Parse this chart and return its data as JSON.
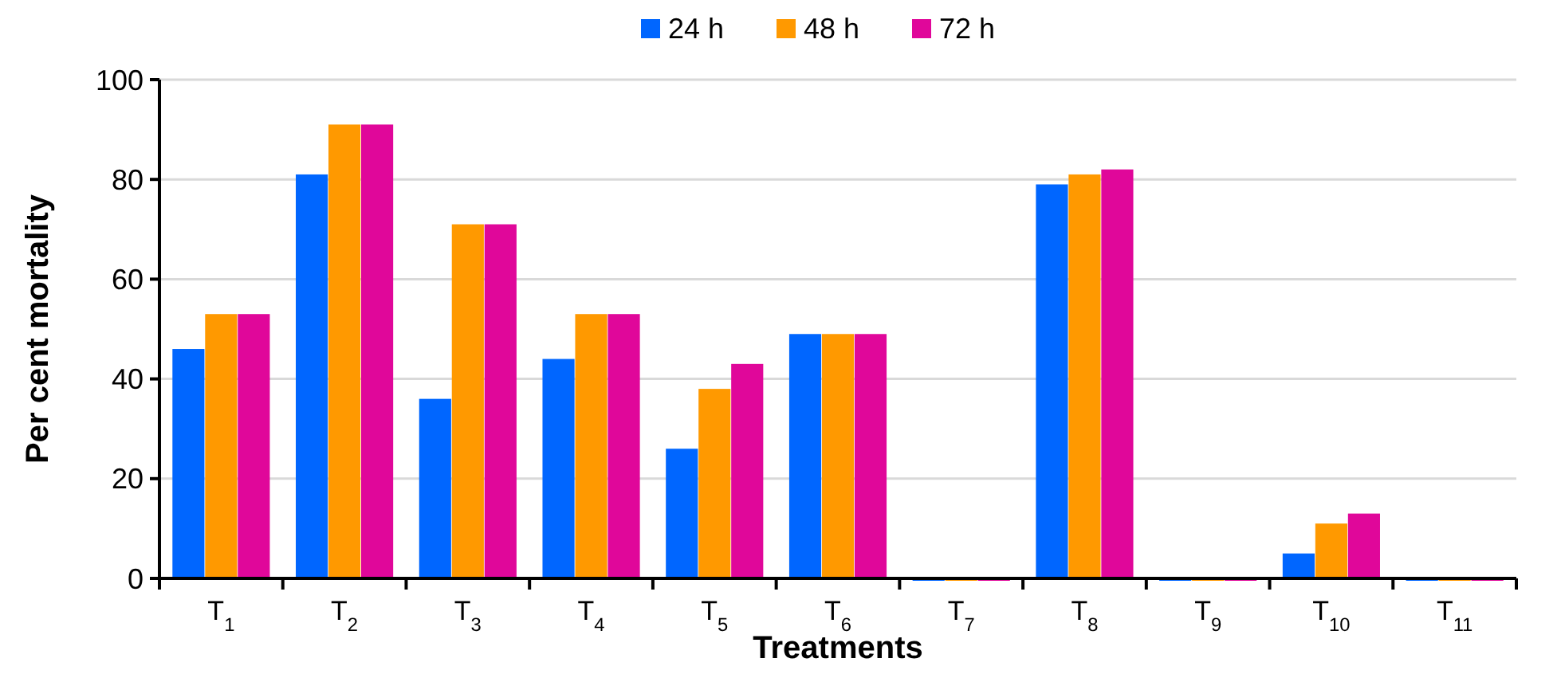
{
  "chart_data": {
    "type": "bar",
    "xlabel": "Treatments",
    "ylabel": "Per cent mortality",
    "categories": [
      "T$_{1}$",
      "T$_{2}$",
      "T$_{3}$",
      "T$_{4}$",
      "T$_{5}$",
      "T$_{6}$",
      "T$_{7}$",
      "T$_{8}$",
      "T$_{9}$",
      "T$_{10}$",
      "T$_{11}$"
    ],
    "series": [
      {
        "name": "24 h",
        "color": "#0066ff",
        "values": [
          46,
          81,
          36,
          44,
          26,
          49,
          0,
          79,
          0,
          5,
          0
        ]
      },
      {
        "name": "48 h",
        "color": "#ff9900",
        "values": [
          53,
          91,
          71,
          53,
          38,
          49,
          0,
          81,
          0,
          11,
          0
        ]
      },
      {
        "name": "72 h",
        "color": "#e0079a",
        "values": [
          53,
          91,
          71,
          53,
          43,
          49,
          0,
          82,
          0,
          13,
          0
        ]
      }
    ],
    "ylim": [
      0,
      100
    ],
    "yticks": [
      0,
      20,
      40,
      60,
      80,
      100
    ],
    "grid": "y",
    "legend": "top"
  }
}
